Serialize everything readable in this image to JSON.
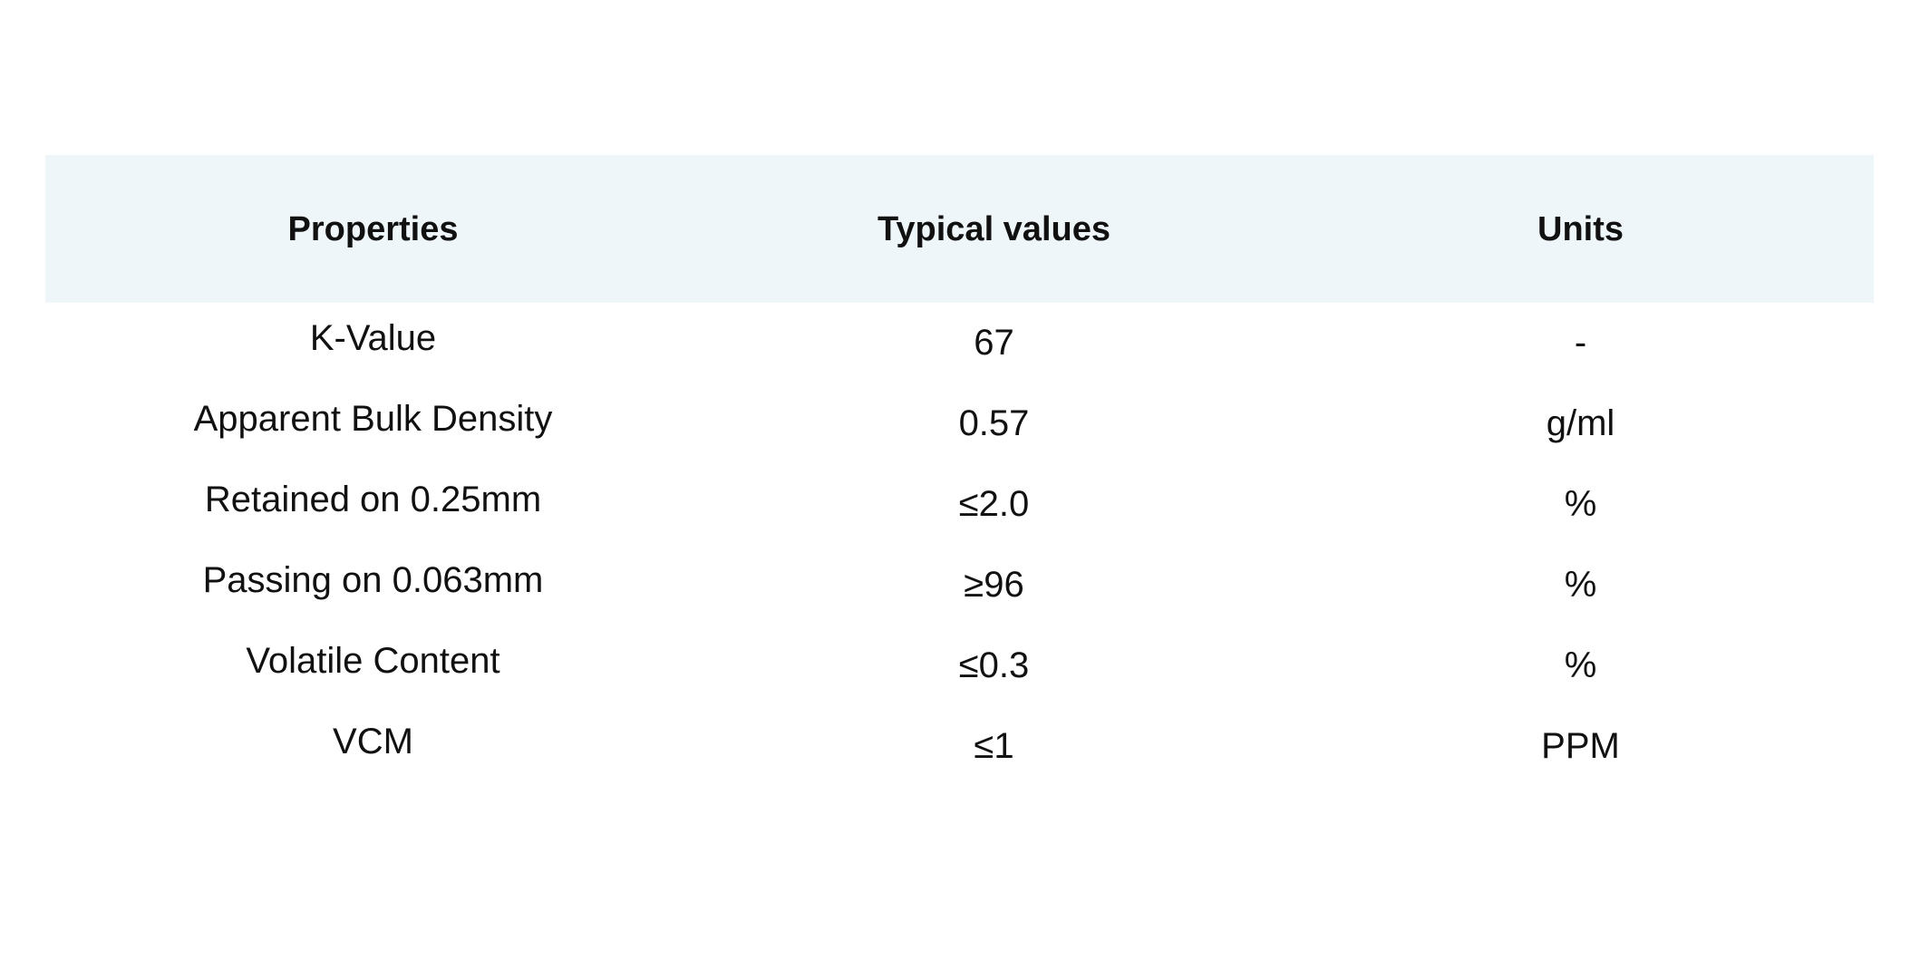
{
  "table": {
    "headers": {
      "property": "Properties",
      "value": "Typical values",
      "unit": "Units"
    },
    "rows": [
      {
        "property": "K-Value",
        "value": "67",
        "unit": "-"
      },
      {
        "property": "Apparent Bulk Density",
        "value": "0.57",
        "unit": "g/ml"
      },
      {
        "property": "Retained on 0.25mm",
        "value": "≤2.0",
        "unit": "%"
      },
      {
        "property": "Passing on 0.063mm",
        "value": "≥96",
        "unit": "%"
      },
      {
        "property": "Volatile Content",
        "value": "≤0.3",
        "unit": "%"
      },
      {
        "property": "VCM",
        "value": "≤1",
        "unit": "PPM"
      }
    ]
  },
  "colors": {
    "header_background": "#eff6fa",
    "text": "#111111"
  }
}
